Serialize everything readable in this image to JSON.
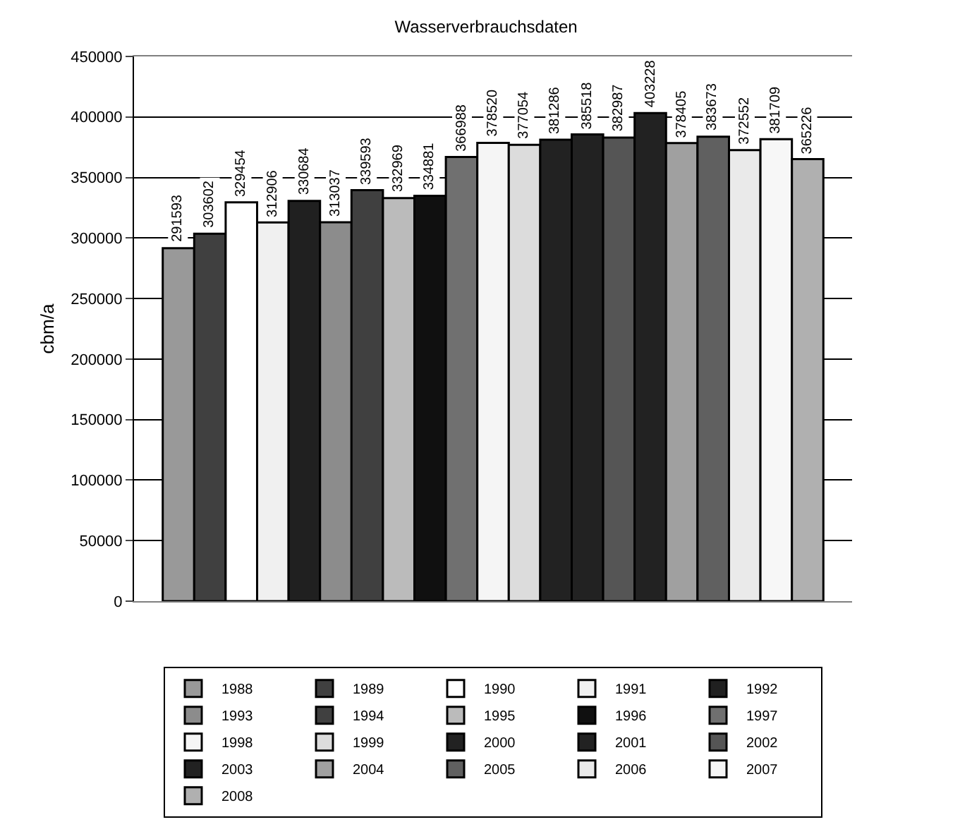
{
  "chart_data": {
    "type": "bar",
    "title": "Wasserverbrauchsdaten",
    "ylabel": "cbm/a",
    "categories": [
      null
    ],
    "series": [
      {
        "name": "1988",
        "color": "#999999",
        "values": [
          291593
        ]
      },
      {
        "name": "1989",
        "color": "#404040",
        "values": [
          303602
        ]
      },
      {
        "name": "1990",
        "color": "#ffffff",
        "values": [
          329454
        ]
      },
      {
        "name": "1991",
        "color": "#f0f0f0",
        "values": [
          312906
        ]
      },
      {
        "name": "1992",
        "color": "#202020",
        "values": [
          330684
        ]
      },
      {
        "name": "1993",
        "color": "#8c8c8c",
        "values": [
          313037
        ]
      },
      {
        "name": "1994",
        "color": "#404040",
        "values": [
          339593
        ]
      },
      {
        "name": "1995",
        "color": "#bbbbbb",
        "values": [
          332969
        ]
      },
      {
        "name": "1996",
        "color": "#101010",
        "values": [
          334881
        ]
      },
      {
        "name": "1997",
        "color": "#707070",
        "values": [
          366988
        ]
      },
      {
        "name": "1998",
        "color": "#f5f5f5",
        "values": [
          378520
        ]
      },
      {
        "name": "1999",
        "color": "#dcdcdc",
        "values": [
          377054
        ]
      },
      {
        "name": "2000",
        "color": "#222222",
        "values": [
          381286
        ]
      },
      {
        "name": "2001",
        "color": "#222222",
        "values": [
          385518
        ]
      },
      {
        "name": "2002",
        "color": "#555555",
        "values": [
          382987
        ]
      },
      {
        "name": "2003",
        "color": "#222222",
        "values": [
          403228
        ]
      },
      {
        "name": "2004",
        "color": "#a0a0a0",
        "values": [
          378405
        ]
      },
      {
        "name": "2005",
        "color": "#606060",
        "values": [
          383673
        ]
      },
      {
        "name": "2006",
        "color": "#eaeaea",
        "values": [
          372552
        ]
      },
      {
        "name": "2007",
        "color": "#f7f7f7",
        "values": [
          381709
        ]
      },
      {
        "name": "2008",
        "color": "#b0b0b0",
        "values": [
          365226
        ]
      }
    ],
    "ylim": [
      0,
      450000
    ],
    "yticks": [
      0,
      50000,
      100000,
      150000,
      200000,
      250000,
      300000,
      350000,
      400000,
      450000
    ],
    "grid": "y",
    "legend": "bottom",
    "data_labels": true
  }
}
